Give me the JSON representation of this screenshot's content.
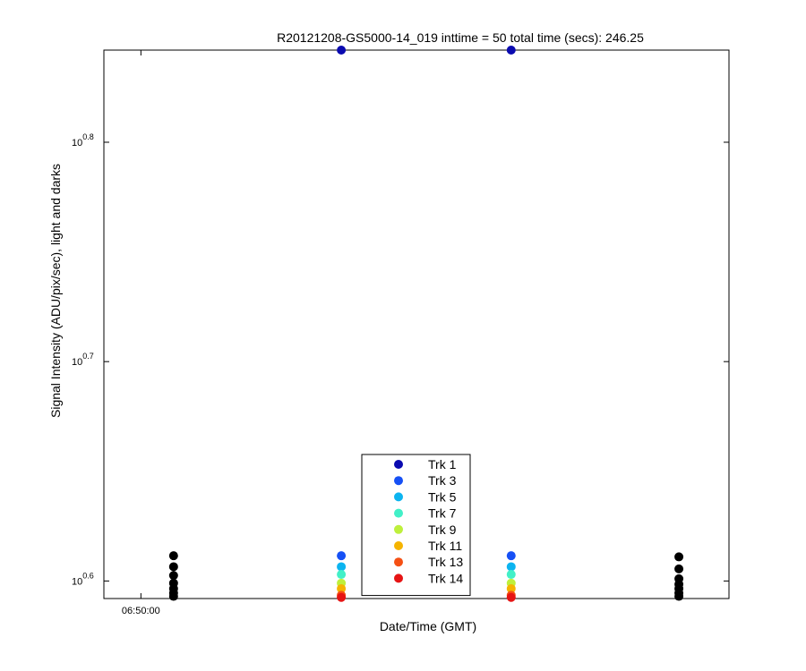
{
  "chart_data": {
    "type": "scatter",
    "title": "R20121208-GS5000-14_019 inttime = 50 total time (secs): 246.25",
    "xlabel": "Date/Time (GMT)",
    "ylabel": "Signal Intensity (ADU/pix/sec), light and darks",
    "yscale": "log",
    "grid": false,
    "legend_position": "bottom-center",
    "x_ticks": [
      {
        "label": "06:50:00",
        "value": -15
      }
    ],
    "y_ticks": [
      {
        "base": "10",
        "exp": "0.6",
        "value": 0.6
      },
      {
        "base": "10",
        "exp": "0.7",
        "value": 0.7
      },
      {
        "base": "10",
        "exp": "0.8",
        "value": 0.8
      }
    ],
    "xlim": [
      -32,
      255
    ],
    "ylim_log10": [
      0.592,
      0.842
    ],
    "series": [
      {
        "name": "Trk 1",
        "color": "#0a0ab0",
        "points": [
          [
            77,
            0.842
          ],
          [
            155,
            0.842
          ]
        ]
      },
      {
        "name": "Trk 3",
        "color": "#1650f5",
        "points": [
          [
            77,
            0.6115
          ],
          [
            155,
            0.6115
          ]
        ]
      },
      {
        "name": "Trk 5",
        "color": "#0cb4f0",
        "points": [
          [
            77,
            0.6065
          ],
          [
            155,
            0.6065
          ]
        ]
      },
      {
        "name": "Trk 7",
        "color": "#42f0c8",
        "points": [
          [
            77,
            0.603
          ],
          [
            155,
            0.603
          ]
        ]
      },
      {
        "name": "Trk 9",
        "color": "#bef03c",
        "points": [
          [
            77,
            0.599
          ],
          [
            155,
            0.599
          ]
        ]
      },
      {
        "name": "Trk 11",
        "color": "#f5b400",
        "points": [
          [
            77,
            0.5965
          ],
          [
            155,
            0.5965
          ]
        ]
      },
      {
        "name": "Trk 13",
        "color": "#f55014",
        "points": [
          [
            77,
            0.5935
          ],
          [
            155,
            0.5935
          ]
        ]
      },
      {
        "name": "Trk 14",
        "color": "#e61414",
        "points": [
          [
            77,
            0.5925
          ],
          [
            155,
            0.5925
          ]
        ]
      },
      {
        "color": "#000000",
        "points": [
          [
            0,
            0.6115
          ],
          [
            0,
            0.6065
          ],
          [
            0,
            0.6025
          ],
          [
            0,
            0.599
          ],
          [
            0,
            0.5965
          ],
          [
            0,
            0.5945
          ],
          [
            0,
            0.593
          ],
          [
            232,
            0.611
          ],
          [
            232,
            0.6055
          ],
          [
            232,
            0.601
          ],
          [
            232,
            0.5985
          ],
          [
            232,
            0.5965
          ],
          [
            232,
            0.5945
          ],
          [
            232,
            0.593
          ]
        ]
      }
    ]
  }
}
